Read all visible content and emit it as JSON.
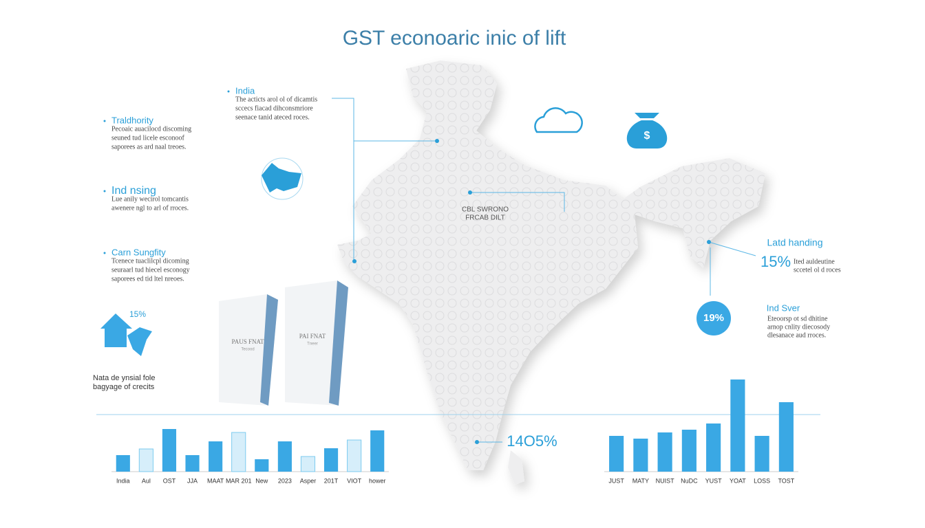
{
  "header": {
    "title": "GST  econoaric inic of lift"
  },
  "notes": [
    {
      "title": "India",
      "lines": [
        "The acticts arol ol of dicamtis",
        "sccecs fiacad dihconsmriore",
        "seenace tanid ateced roces."
      ]
    },
    {
      "title": "Traldhority",
      "lines": [
        "Pecoaic auacilocd discoming",
        "seuned tud licele esconoof",
        "saporees as ard naal treoes."
      ]
    },
    {
      "title": "Ind nsing",
      "lines": [
        "Lue anily wecirol tomcantis",
        "awenere ngl to arl of rroces."
      ]
    },
    {
      "title": "Carn Sungfity",
      "lines": [
        "Tcenece tuaclilcpl dicoming",
        "seuraarl tud hiecel esconogy",
        "saporees ed tid ltel nreoes."
      ]
    }
  ],
  "house_label": "15%",
  "caption": [
    "Nata de ynsial fole",
    "bagyage of crecits"
  ],
  "boxes": [
    {
      "title": "PAUS FNAT",
      "sub": "Tecood"
    },
    {
      "title": "PAI FNAT",
      "sub": "Tneer"
    }
  ],
  "map_label": [
    "CBL SWRONO",
    "FRCAB DILT"
  ],
  "south_value": "14O5%",
  "right_notes": [
    {
      "title": "Latd handing",
      "value": "15%",
      "lines": [
        "Ited auldeutine",
        "sccetel ol d roces"
      ]
    },
    {
      "title": "Ind Sver",
      "value": "19%",
      "lines": [
        "Eteoorsp ot sd dhitine",
        "arnop cnlity diecosody",
        "dlesanace aud rroces."
      ]
    }
  ],
  "chart_data": [
    {
      "type": "bar",
      "categories": [
        "India",
        "Aul",
        "OST",
        "JJA",
        "MAAT",
        "MAR 201",
        "New",
        "2023",
        "Asper",
        "201T",
        "VIOT",
        "hower"
      ],
      "values": [
        24,
        33,
        62,
        24,
        44,
        57,
        18,
        44,
        22,
        34,
        46,
        60
      ],
      "colors": [
        "#3aa8e4",
        "#d6eefa",
        "#3aa8e4",
        "#3aa8e4",
        "#3aa8e4",
        "#d6eefa",
        "#3aa8e4",
        "#3aa8e4",
        "#d6eefa",
        "#3aa8e4",
        "#d6eefa",
        "#3aa8e4"
      ]
    },
    {
      "type": "bar",
      "categories": [
        "JUST",
        "MATY",
        "NUIST",
        "NuDC",
        "YUST",
        "YOAT",
        "LOSS",
        "TOST"
      ],
      "values": [
        52,
        48,
        57,
        61,
        70,
        134,
        52,
        101
      ],
      "color": "#3aa8e4"
    }
  ]
}
